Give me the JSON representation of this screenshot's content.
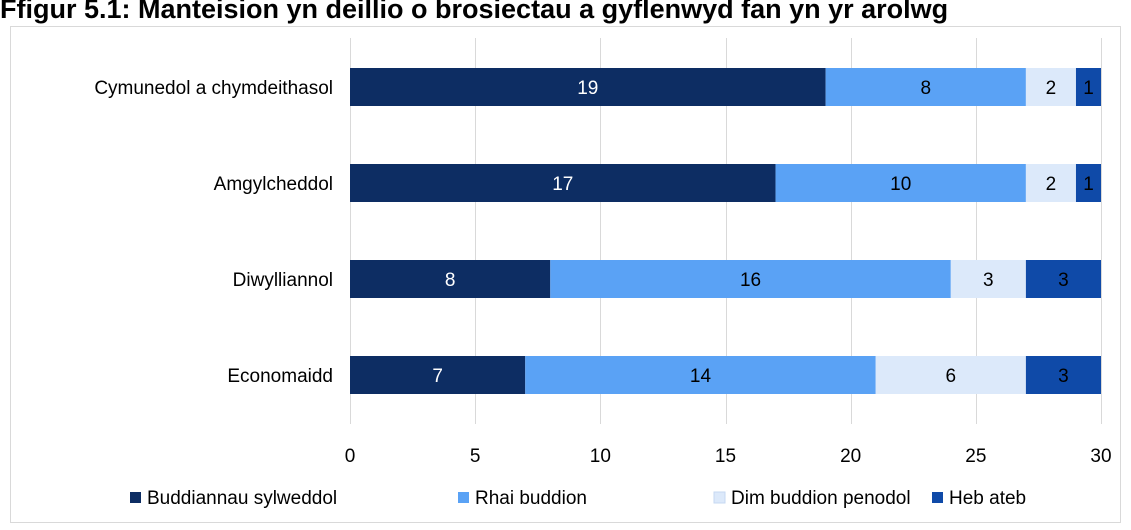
{
  "chart_data": {
    "type": "bar",
    "orientation": "horizontal",
    "stacked": true,
    "title": "Ffigur 5.1: Manteision yn deillio o brosiectau a gyflenwyd fan yn yr arolwg",
    "categories": [
      "Cymunedol a chymdeithasol",
      "Amgylcheddol",
      "Diwylliannol",
      "Economaidd"
    ],
    "series": [
      {
        "name": "Buddiannau sylweddol",
        "color": "#0d2d63",
        "label_color": "#ffffff",
        "values": [
          19,
          17,
          8,
          7
        ]
      },
      {
        "name": "Rhai buddion",
        "color": "#5aa2f5",
        "label_color": "#000000",
        "values": [
          8,
          10,
          16,
          14
        ]
      },
      {
        "name": "Dim buddion penodol",
        "color": "#dce9fa",
        "label_color": "#000000",
        "values": [
          2,
          2,
          3,
          6
        ]
      },
      {
        "name": "Heb ateb",
        "color": "#0f4aa8",
        "label_color": "#000000",
        "values": [
          1,
          1,
          3,
          3
        ]
      }
    ],
    "xlim": [
      0,
      30
    ],
    "xticks": [
      0,
      5,
      10,
      15,
      20,
      25,
      30
    ],
    "xlabel": "",
    "ylabel": "",
    "grid": true,
    "legend_position": "bottom"
  }
}
